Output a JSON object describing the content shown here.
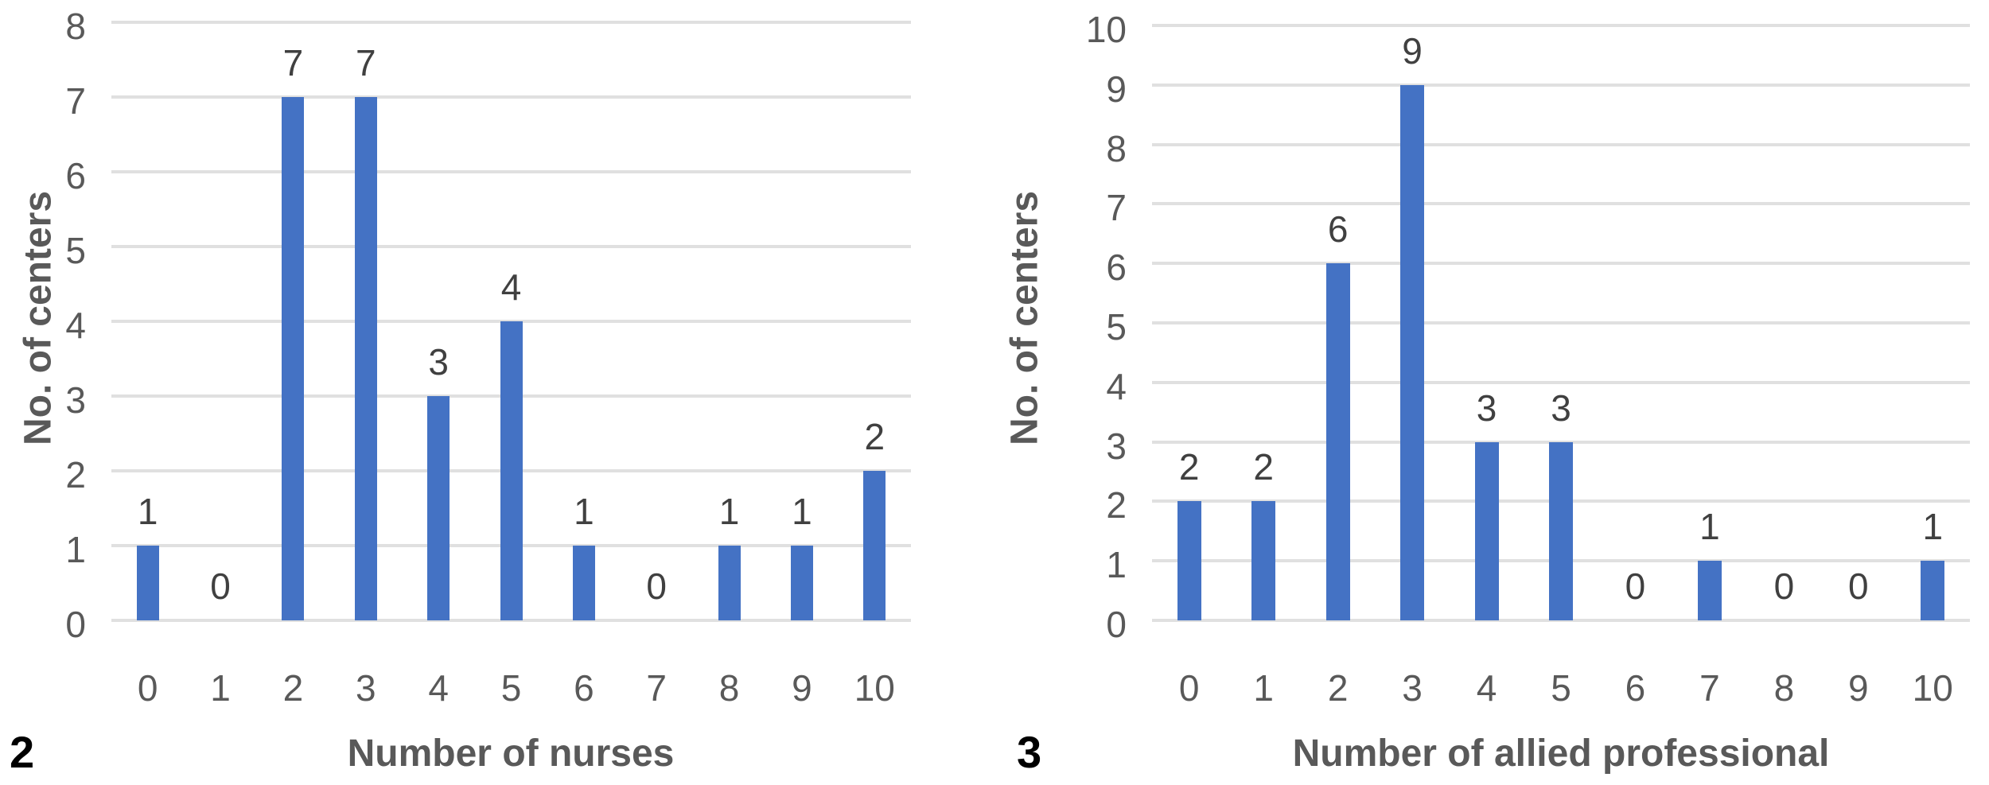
{
  "figure": {
    "background_color": "#ffffff",
    "bar_color": "#4472C4",
    "gridline_color": "#e0e0e0",
    "tick_label_color": "#595959",
    "value_label_color": "#404040",
    "axis_title_color": "#595959",
    "figure_number_color": "#000000"
  },
  "chart_data": [
    {
      "type": "bar",
      "figure_number": "2",
      "title": "",
      "xlabel": "Number of nurses",
      "ylabel": "No. of centers",
      "categories": [
        "0",
        "1",
        "2",
        "3",
        "4",
        "5",
        "6",
        "7",
        "8",
        "9",
        "10"
      ],
      "values": [
        1,
        0,
        7,
        7,
        3,
        4,
        1,
        0,
        1,
        1,
        2
      ],
      "data_labels": [
        "1",
        "0",
        "7",
        "7",
        "3",
        "4",
        "1",
        "0",
        "1",
        "1",
        "2"
      ],
      "ylim": [
        0,
        8
      ],
      "yticks": [
        "0",
        "1",
        "2",
        "3",
        "4",
        "5",
        "6",
        "7",
        "8"
      ],
      "grid": true,
      "legend": "none"
    },
    {
      "type": "bar",
      "figure_number": "3",
      "title": "",
      "xlabel": "Number of allied professional",
      "ylabel": "No. of centers",
      "categories": [
        "0",
        "1",
        "2",
        "3",
        "4",
        "5",
        "6",
        "7",
        "8",
        "9",
        "10"
      ],
      "values": [
        2,
        2,
        6,
        9,
        3,
        3,
        0,
        1,
        0,
        0,
        1
      ],
      "data_labels": [
        "2",
        "2",
        "6",
        "9",
        "3",
        "3",
        "0",
        "1",
        "0",
        "0",
        "1"
      ],
      "ylim": [
        0,
        10
      ],
      "yticks": [
        "0",
        "1",
        "2",
        "3",
        "4",
        "5",
        "6",
        "7",
        "8",
        "9",
        "10"
      ],
      "grid": true,
      "legend": "none"
    }
  ]
}
